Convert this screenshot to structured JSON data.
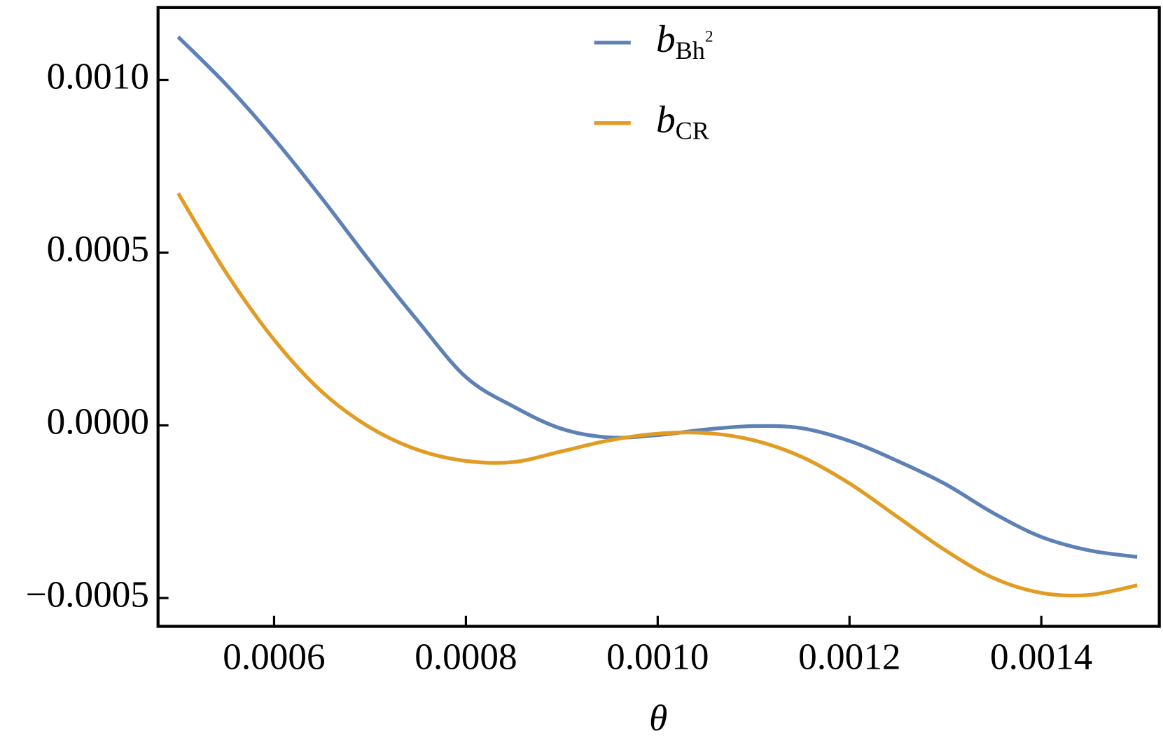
{
  "chart_data": {
    "type": "line",
    "x_label": "θ",
    "x": [
      0.0005,
      0.00055,
      0.0006,
      0.00065,
      0.0007,
      0.00075,
      0.0008,
      0.00085,
      0.0009,
      0.00095,
      0.001,
      0.00105,
      0.0011,
      0.00115,
      0.0012,
      0.00125,
      0.0013,
      0.00135,
      0.0014,
      0.00145,
      0.0015
    ],
    "series": [
      {
        "name": "b",
        "name_sub": "Bh",
        "name_sup": "2",
        "color": "#5e81b5",
        "values": [
          0.001125,
          0.000987,
          0.00083,
          0.000657,
          0.000475,
          0.000302,
          0.00014,
          5.4e-05,
          -1e-05,
          -3.5e-05,
          -2.8e-05,
          -1.2e-05,
          -2e-06,
          -8e-06,
          -4.5e-05,
          -0.000103,
          -0.00017,
          -0.000254,
          -0.000323,
          -0.000362,
          -0.000381
        ]
      },
      {
        "name": "b",
        "name_sub": "CR",
        "color": "#e19c24",
        "values": [
          0.000672,
          0.000442,
          0.000248,
          9.7e-05,
          -6e-06,
          -7.1e-05,
          -0.000103,
          -0.000106,
          -7.5e-05,
          -4.3e-05,
          -2.4e-05,
          -2.2e-05,
          -4.3e-05,
          -9.1e-05,
          -0.000168,
          -0.000265,
          -0.000362,
          -0.000442,
          -0.000485,
          -0.000491,
          -0.000463
        ]
      }
    ],
    "xlim": [
      0.000479,
      0.001523
    ],
    "ylim": [
      -0.000582,
      0.00121
    ],
    "xticks": [
      0.0006,
      0.0008,
      {
        "value": 0.001,
        "label": "0.0010"
      },
      0.0012,
      0.0014
    ],
    "yticks": [
      {
        "value": -0.0005,
        "label": "−0.0005"
      },
      {
        "value": 0,
        "label": "0.0000"
      },
      {
        "value": 0.0005,
        "label": "0.0005"
      },
      {
        "value": 0.001,
        "label": "0.0010"
      }
    ],
    "legend": "top-center"
  }
}
